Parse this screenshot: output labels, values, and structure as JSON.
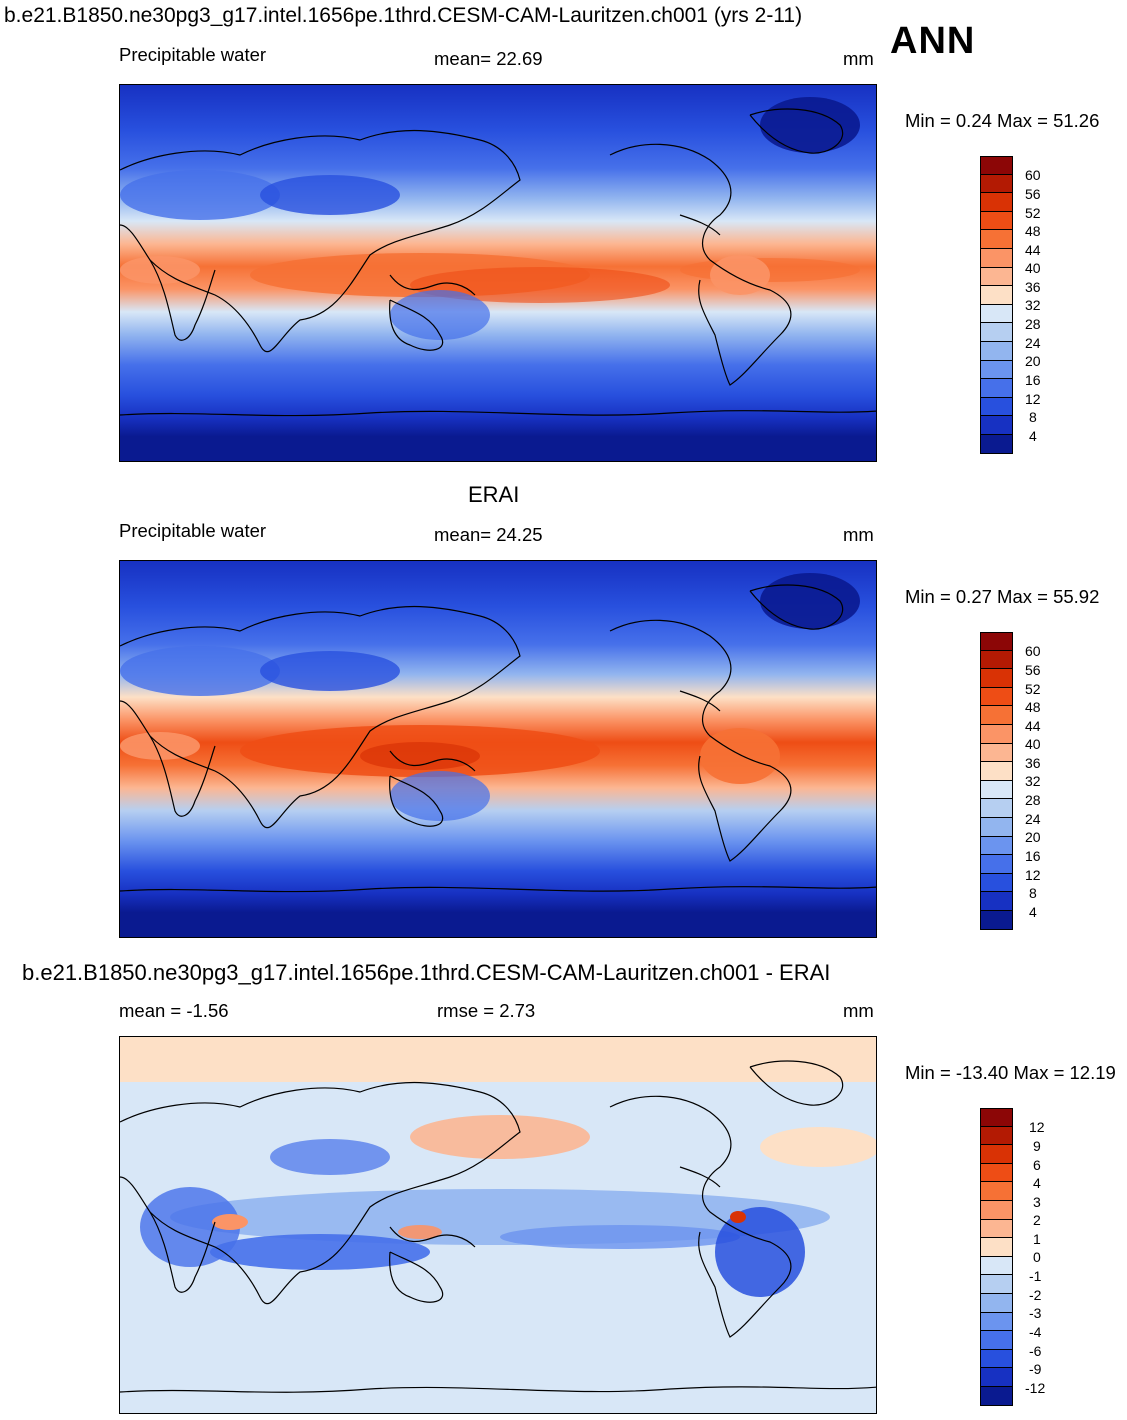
{
  "header": {
    "title": "b.e21.B1850.ne30pg3_g17.intel.1656pe.1thrd.CESM-CAM-Lauritzen.ch001 (yrs 2-11)",
    "season": "ANN"
  },
  "panels": [
    {
      "id": "model",
      "subtitle": "",
      "left_label": "Precipitable water",
      "center_label": "mean=  22.69",
      "units": "mm",
      "minmax": "Min =    0.24 Max =  51.26",
      "colorbar": {
        "labels": [
          "60",
          "56",
          "52",
          "48",
          "44",
          "40",
          "36",
          "32",
          "28",
          "24",
          "20",
          "16",
          "12",
          "8",
          "4"
        ],
        "colors": [
          "#8c0606",
          "#b31a03",
          "#d93205",
          "#ee4d15",
          "#f67135",
          "#fb9466",
          "#fcb692",
          "#fde0c6",
          "#d8e7f7",
          "#b6cff1",
          "#92b5ef",
          "#6b94ef",
          "#4670ea",
          "#2850de",
          "#1731c2",
          "#0a1a90"
        ]
      }
    },
    {
      "id": "obs",
      "subtitle": "ERAI",
      "left_label": "Precipitable water",
      "center_label": "mean=  24.25",
      "units": "mm",
      "minmax": "Min =    0.27 Max =  55.92",
      "colorbar": {
        "labels": [
          "60",
          "56",
          "52",
          "48",
          "44",
          "40",
          "36",
          "32",
          "28",
          "24",
          "20",
          "16",
          "12",
          "8",
          "4"
        ],
        "colors": [
          "#8c0606",
          "#b31a03",
          "#d93205",
          "#ee4d15",
          "#f67135",
          "#fb9466",
          "#fcb692",
          "#fde0c6",
          "#d8e7f7",
          "#b6cff1",
          "#92b5ef",
          "#6b94ef",
          "#4670ea",
          "#2850de",
          "#1731c2",
          "#0a1a90"
        ]
      }
    },
    {
      "id": "diff",
      "subtitle": "b.e21.B1850.ne30pg3_g17.intel.1656pe.1thrd.CESM-CAM-Lauritzen.ch001 - ERAI",
      "left_label": "mean =  -1.56",
      "center_label": "rmse =    2.73",
      "units": "mm",
      "minmax": "Min = -13.40 Max =  12.19",
      "colorbar": {
        "labels": [
          "12",
          "9",
          "6",
          "4",
          "3",
          "2",
          "1",
          "0",
          "-1",
          "-2",
          "-3",
          "-4",
          "-6",
          "-9",
          "-12"
        ],
        "colors": [
          "#8c0606",
          "#b31a03",
          "#d93205",
          "#ee4d15",
          "#f67135",
          "#fb9466",
          "#fcb692",
          "#fde0c6",
          "#d8e7f7",
          "#b6cff1",
          "#92b5ef",
          "#6b94ef",
          "#4670ea",
          "#2850de",
          "#1731c2",
          "#0a1a90"
        ]
      }
    }
  ]
}
